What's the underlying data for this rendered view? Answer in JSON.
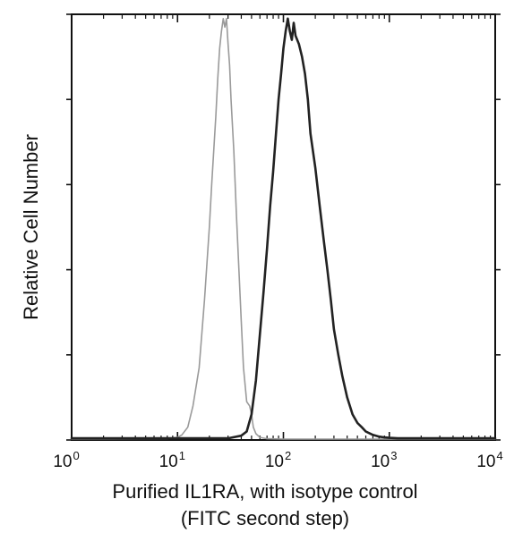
{
  "chart_data": {
    "type": "line",
    "xscale": "log",
    "xlim": [
      1,
      10000
    ],
    "ylim": [
      0,
      1
    ],
    "grid": false,
    "legend": "none",
    "title": "",
    "xlabel": "Purified IL1RA, with isotype control",
    "xlabel_line2": "(FITC second step)",
    "ylabel": "Relative Cell Number",
    "x_ticks": [
      {
        "value": 1,
        "base": "10",
        "exp": "0"
      },
      {
        "value": 10,
        "base": "10",
        "exp": "1"
      },
      {
        "value": 100,
        "base": "10",
        "exp": "2"
      },
      {
        "value": 1000,
        "base": "10",
        "exp": "3"
      },
      {
        "value": 10000,
        "base": "10",
        "exp": "4"
      }
    ],
    "y_ticks": [
      0,
      0.2,
      0.4,
      0.6,
      0.8,
      1.0
    ],
    "series": [
      {
        "color": "#9a9a9a",
        "stroke_width": 1.6,
        "x": [
          1,
          8,
          10,
          11,
          12.5,
          14,
          16,
          18,
          20,
          21,
          22,
          23,
          24,
          25,
          26,
          27,
          28,
          29,
          30,
          31,
          32,
          34,
          36,
          38,
          40,
          42,
          45,
          48,
          50,
          52,
          55,
          60,
          70,
          100,
          10000
        ],
        "y": [
          0.002,
          0.003,
          0.006,
          0.012,
          0.03,
          0.08,
          0.17,
          0.33,
          0.5,
          0.6,
          0.68,
          0.76,
          0.85,
          0.92,
          0.96,
          0.99,
          0.97,
          0.99,
          0.93,
          0.88,
          0.8,
          0.68,
          0.53,
          0.4,
          0.28,
          0.17,
          0.09,
          0.08,
          0.06,
          0.03,
          0.015,
          0.006,
          0.003,
          0.002,
          0.002
        ]
      },
      {
        "color": "#222222",
        "stroke_width": 2.6,
        "x": [
          1,
          10,
          30,
          40,
          45,
          50,
          55,
          60,
          65,
          70,
          75,
          80,
          85,
          90,
          95,
          100,
          105,
          110,
          115,
          120,
          125,
          130,
          140,
          150,
          160,
          170,
          180,
          200,
          220,
          240,
          260,
          280,
          300,
          330,
          360,
          400,
          450,
          500,
          550,
          600,
          700,
          800,
          900,
          1000,
          1200,
          10000
        ],
        "y": [
          0.004,
          0.004,
          0.004,
          0.01,
          0.02,
          0.06,
          0.14,
          0.25,
          0.35,
          0.45,
          0.55,
          0.63,
          0.72,
          0.8,
          0.86,
          0.92,
          0.96,
          0.99,
          0.96,
          0.94,
          0.98,
          0.95,
          0.93,
          0.9,
          0.86,
          0.8,
          0.72,
          0.64,
          0.55,
          0.47,
          0.4,
          0.33,
          0.26,
          0.2,
          0.15,
          0.1,
          0.06,
          0.04,
          0.03,
          0.02,
          0.012,
          0.008,
          0.006,
          0.005,
          0.004,
          0.004
        ]
      }
    ]
  }
}
